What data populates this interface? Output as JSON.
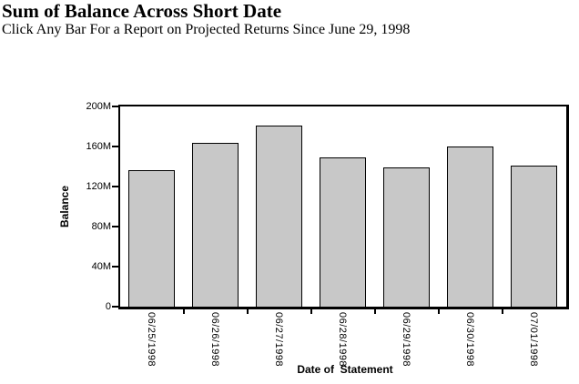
{
  "header": {
    "title": "Sum of Balance Across Short Date",
    "subtitle": "Click Any Bar For a Report on Projected Returns Since June 29, 1998"
  },
  "chart_data": {
    "type": "bar",
    "title": "Sum of Balance Across Short Date",
    "subtitle": "Click Any Bar For a Report on Projected Returns Since June 29, 1998",
    "xlabel": "Date of  Statement",
    "ylabel": "Balance",
    "categories": [
      "06/25/1998",
      "06/26/1998",
      "06/27/1998",
      "06/28/1998",
      "06/29/1998",
      "06/30/1998",
      "07/01/1998"
    ],
    "values": [
      136,
      164,
      181,
      149,
      139,
      160,
      141
    ],
    "value_unit": "M",
    "ylim": [
      0,
      200
    ],
    "ytick_values": [
      0,
      40,
      80,
      120,
      160,
      200
    ],
    "ytick_labels": [
      "0",
      "40M",
      "80M",
      "120M",
      "160M",
      "200M"
    ],
    "x_label_rotation": 90,
    "grid": false,
    "legend_position": "none",
    "colors": {
      "bar_fill": "#c8c8c8",
      "bar_border": "#000000",
      "axis": "#000000",
      "text": "#000000",
      "background": "#ffffff"
    }
  }
}
